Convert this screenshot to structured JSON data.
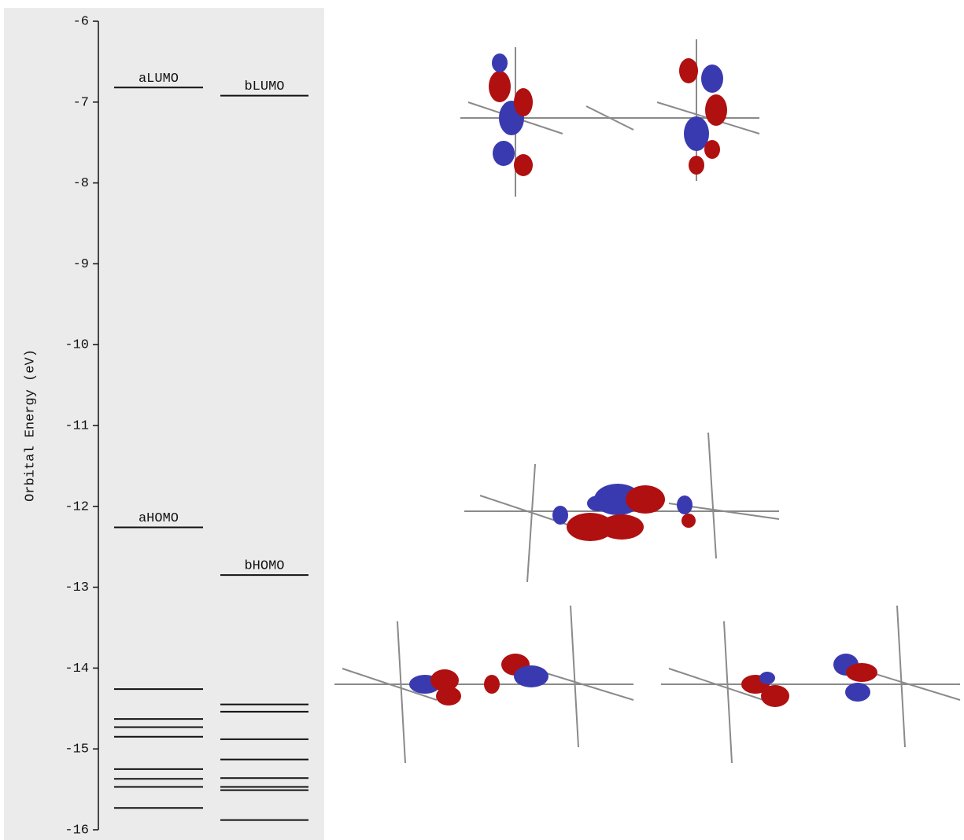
{
  "chart_data": {
    "type": "levels",
    "y_label": "Orbital Energy (eV)",
    "ylim": [
      -16,
      -6
    ],
    "yticks": [
      -6,
      -7,
      -8,
      -9,
      -10,
      -11,
      -12,
      -13,
      -14,
      -15,
      -16
    ],
    "series": [
      {
        "color": "#111111",
        "values": [
          -6.82,
          -12.26,
          -14.26,
          -14.63,
          -14.73,
          -14.85,
          -15.25,
          -15.37,
          -15.47,
          -15.73
        ],
        "level_labels": [
          "aLUMO",
          "aHOMO",
          null,
          null,
          null,
          null,
          null,
          null,
          null,
          null
        ]
      },
      {
        "color": "#111111",
        "values": [
          -6.92,
          -12.85,
          -14.45,
          -14.54,
          -14.88,
          -15.13,
          -15.36,
          -15.47,
          -15.51,
          -15.88
        ],
        "level_labels": [
          "bLUMO",
          "bHOMO",
          null,
          null,
          null,
          null,
          null,
          null,
          null,
          null
        ]
      }
    ]
  }
}
